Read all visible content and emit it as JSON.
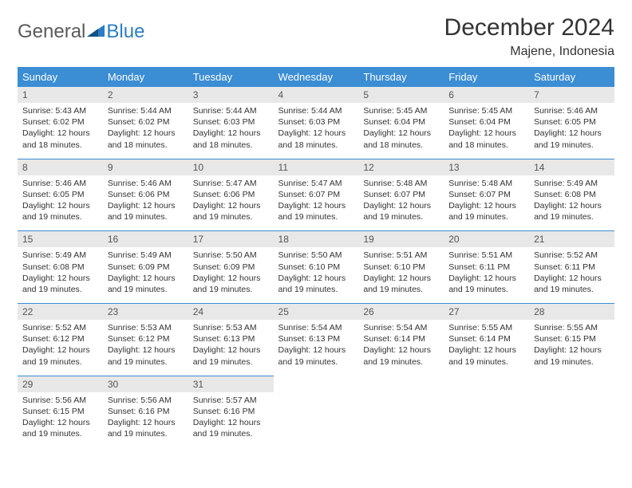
{
  "brand": {
    "text1": "General",
    "text2": "Blue"
  },
  "title": "December 2024",
  "location": "Majene, Indonesia",
  "colors": {
    "header_bg": "#3b8dd4",
    "header_text": "#ffffff",
    "daynum_bg": "#e8e8e8",
    "border": "#3b8dd4",
    "brand_gray": "#5a5a5a",
    "brand_blue": "#2a7dc4"
  },
  "day_labels": [
    "Sunday",
    "Monday",
    "Tuesday",
    "Wednesday",
    "Thursday",
    "Friday",
    "Saturday"
  ],
  "weeks": [
    [
      {
        "n": "1",
        "sunrise": "5:43 AM",
        "sunset": "6:02 PM",
        "dl": "12 hours and 18 minutes."
      },
      {
        "n": "2",
        "sunrise": "5:44 AM",
        "sunset": "6:02 PM",
        "dl": "12 hours and 18 minutes."
      },
      {
        "n": "3",
        "sunrise": "5:44 AM",
        "sunset": "6:03 PM",
        "dl": "12 hours and 18 minutes."
      },
      {
        "n": "4",
        "sunrise": "5:44 AM",
        "sunset": "6:03 PM",
        "dl": "12 hours and 18 minutes."
      },
      {
        "n": "5",
        "sunrise": "5:45 AM",
        "sunset": "6:04 PM",
        "dl": "12 hours and 18 minutes."
      },
      {
        "n": "6",
        "sunrise": "5:45 AM",
        "sunset": "6:04 PM",
        "dl": "12 hours and 18 minutes."
      },
      {
        "n": "7",
        "sunrise": "5:46 AM",
        "sunset": "6:05 PM",
        "dl": "12 hours and 19 minutes."
      }
    ],
    [
      {
        "n": "8",
        "sunrise": "5:46 AM",
        "sunset": "6:05 PM",
        "dl": "12 hours and 19 minutes."
      },
      {
        "n": "9",
        "sunrise": "5:46 AM",
        "sunset": "6:06 PM",
        "dl": "12 hours and 19 minutes."
      },
      {
        "n": "10",
        "sunrise": "5:47 AM",
        "sunset": "6:06 PM",
        "dl": "12 hours and 19 minutes."
      },
      {
        "n": "11",
        "sunrise": "5:47 AM",
        "sunset": "6:07 PM",
        "dl": "12 hours and 19 minutes."
      },
      {
        "n": "12",
        "sunrise": "5:48 AM",
        "sunset": "6:07 PM",
        "dl": "12 hours and 19 minutes."
      },
      {
        "n": "13",
        "sunrise": "5:48 AM",
        "sunset": "6:07 PM",
        "dl": "12 hours and 19 minutes."
      },
      {
        "n": "14",
        "sunrise": "5:49 AM",
        "sunset": "6:08 PM",
        "dl": "12 hours and 19 minutes."
      }
    ],
    [
      {
        "n": "15",
        "sunrise": "5:49 AM",
        "sunset": "6:08 PM",
        "dl": "12 hours and 19 minutes."
      },
      {
        "n": "16",
        "sunrise": "5:49 AM",
        "sunset": "6:09 PM",
        "dl": "12 hours and 19 minutes."
      },
      {
        "n": "17",
        "sunrise": "5:50 AM",
        "sunset": "6:09 PM",
        "dl": "12 hours and 19 minutes."
      },
      {
        "n": "18",
        "sunrise": "5:50 AM",
        "sunset": "6:10 PM",
        "dl": "12 hours and 19 minutes."
      },
      {
        "n": "19",
        "sunrise": "5:51 AM",
        "sunset": "6:10 PM",
        "dl": "12 hours and 19 minutes."
      },
      {
        "n": "20",
        "sunrise": "5:51 AM",
        "sunset": "6:11 PM",
        "dl": "12 hours and 19 minutes."
      },
      {
        "n": "21",
        "sunrise": "5:52 AM",
        "sunset": "6:11 PM",
        "dl": "12 hours and 19 minutes."
      }
    ],
    [
      {
        "n": "22",
        "sunrise": "5:52 AM",
        "sunset": "6:12 PM",
        "dl": "12 hours and 19 minutes."
      },
      {
        "n": "23",
        "sunrise": "5:53 AM",
        "sunset": "6:12 PM",
        "dl": "12 hours and 19 minutes."
      },
      {
        "n": "24",
        "sunrise": "5:53 AM",
        "sunset": "6:13 PM",
        "dl": "12 hours and 19 minutes."
      },
      {
        "n": "25",
        "sunrise": "5:54 AM",
        "sunset": "6:13 PM",
        "dl": "12 hours and 19 minutes."
      },
      {
        "n": "26",
        "sunrise": "5:54 AM",
        "sunset": "6:14 PM",
        "dl": "12 hours and 19 minutes."
      },
      {
        "n": "27",
        "sunrise": "5:55 AM",
        "sunset": "6:14 PM",
        "dl": "12 hours and 19 minutes."
      },
      {
        "n": "28",
        "sunrise": "5:55 AM",
        "sunset": "6:15 PM",
        "dl": "12 hours and 19 minutes."
      }
    ],
    [
      {
        "n": "29",
        "sunrise": "5:56 AM",
        "sunset": "6:15 PM",
        "dl": "12 hours and 19 minutes."
      },
      {
        "n": "30",
        "sunrise": "5:56 AM",
        "sunset": "6:16 PM",
        "dl": "12 hours and 19 minutes."
      },
      {
        "n": "31",
        "sunrise": "5:57 AM",
        "sunset": "6:16 PM",
        "dl": "12 hours and 19 minutes."
      },
      null,
      null,
      null,
      null
    ]
  ]
}
